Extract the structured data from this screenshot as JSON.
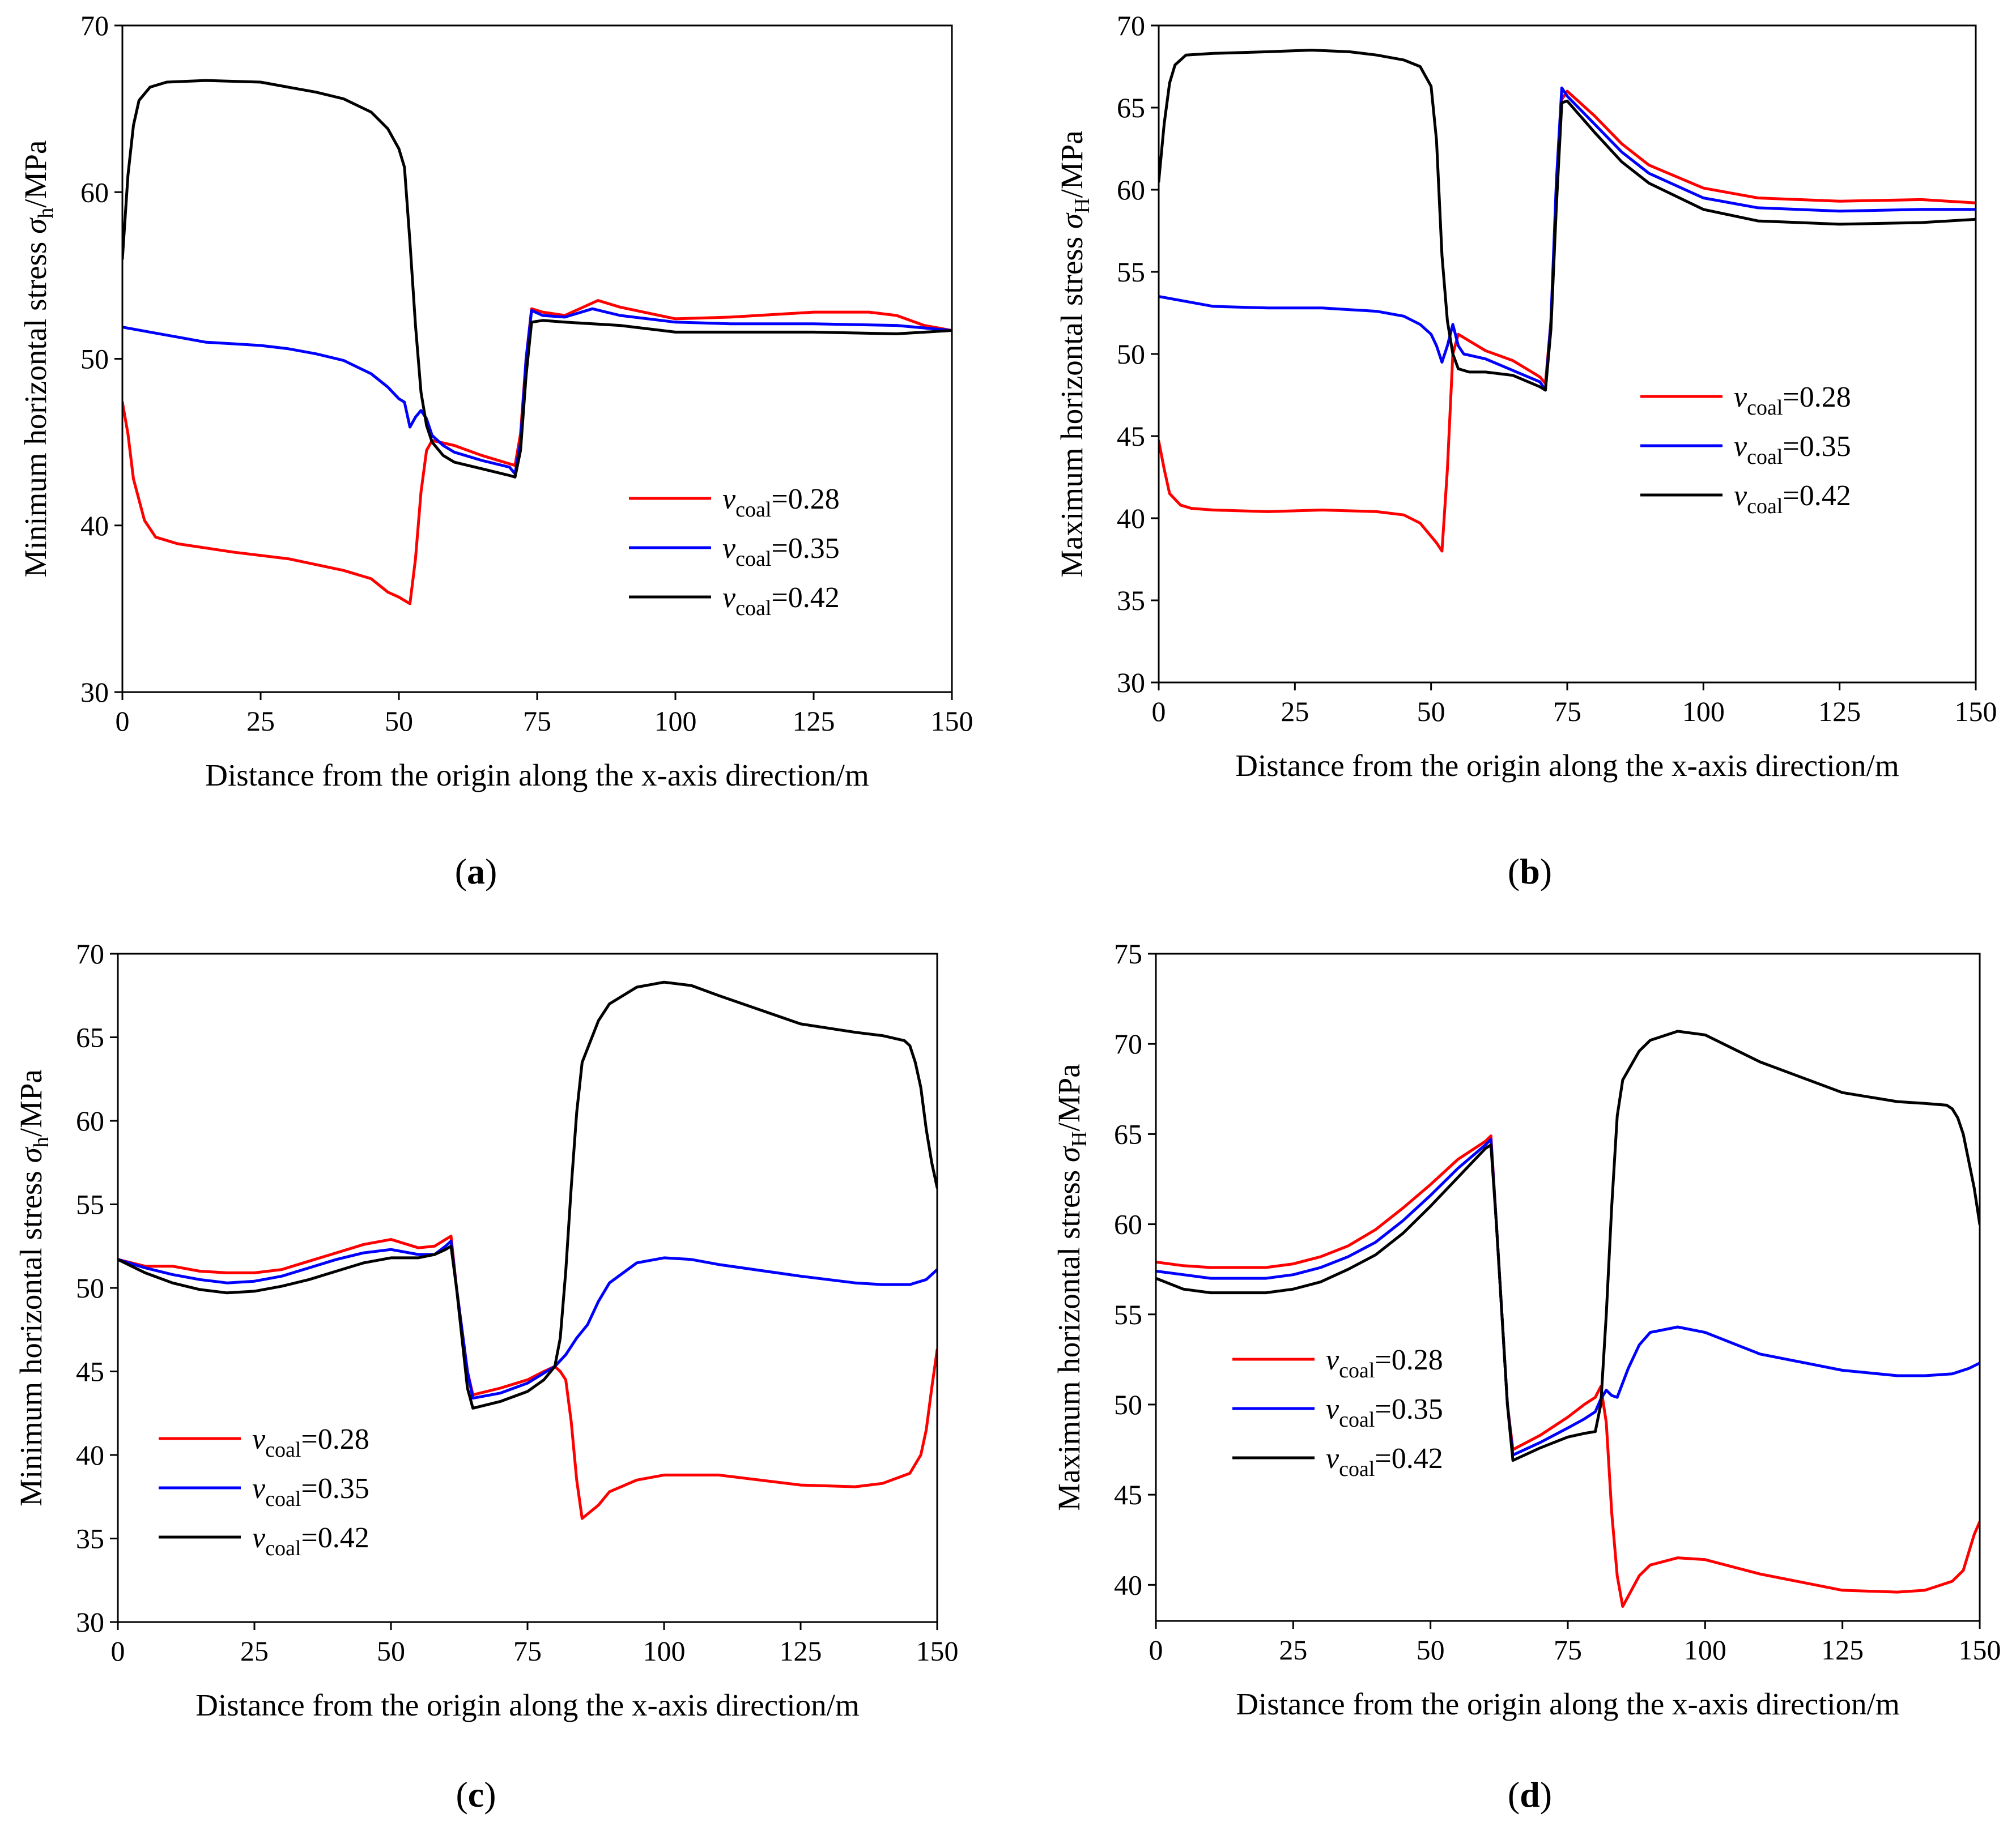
{
  "chart_data": [
    {
      "type": "line",
      "panel": "(a)",
      "ylabel": "Minimum horizontal stress σh/MPa",
      "xlabel": "Distance from the origin along the x-axis direction/m",
      "xlim": [
        0,
        150
      ],
      "ylim": [
        30,
        70
      ],
      "xticks": [
        0,
        25,
        50,
        75,
        100,
        125,
        150
      ],
      "yticks": [
        30,
        40,
        50,
        60,
        70
      ],
      "legend_position": "center-right",
      "series": [
        {
          "name": "vcoal=0.28",
          "color": "#ff0000",
          "x": [
            0,
            1,
            2,
            4,
            6,
            10,
            20,
            30,
            40,
            45,
            48,
            50,
            52,
            53,
            54,
            55,
            56,
            60,
            65,
            70,
            71,
            72,
            73,
            74,
            76,
            80,
            86,
            90,
            100,
            110,
            125,
            135,
            140,
            145,
            150
          ],
          "y": [
            47.4,
            45.5,
            42.8,
            40.3,
            39.3,
            38.9,
            38.4,
            38.0,
            37.3,
            36.8,
            36.0,
            35.7,
            35.3,
            38.0,
            42.0,
            44.5,
            45.1,
            44.8,
            44.2,
            43.7,
            43.6,
            45.5,
            50.0,
            53.0,
            52.8,
            52.6,
            53.5,
            53.1,
            52.4,
            52.5,
            52.8,
            52.8,
            52.6,
            52.0,
            51.7
          ]
        },
        {
          "name": "vcoal=0.35",
          "color": "#0000ff",
          "x": [
            0,
            5,
            10,
            15,
            20,
            25,
            30,
            35,
            40,
            45,
            48,
            50,
            51,
            52,
            53,
            54,
            55,
            56,
            58,
            60,
            65,
            70,
            71,
            72,
            73,
            74,
            76,
            80,
            85,
            90,
            100,
            110,
            125,
            140,
            150
          ],
          "y": [
            51.9,
            51.6,
            51.3,
            51.0,
            50.9,
            50.8,
            50.6,
            50.3,
            49.9,
            49.1,
            48.3,
            47.6,
            47.4,
            45.9,
            46.5,
            46.9,
            46.4,
            45.4,
            44.8,
            44.4,
            43.9,
            43.5,
            43.1,
            45.0,
            50.0,
            52.9,
            52.6,
            52.5,
            53.0,
            52.6,
            52.2,
            52.1,
            52.1,
            52.0,
            51.7
          ]
        },
        {
          "name": "vcoal=0.42",
          "color": "#000000",
          "x": [
            0,
            1,
            2,
            3,
            5,
            8,
            15,
            25,
            30,
            35,
            40,
            45,
            48,
            50,
            51,
            52,
            53,
            54,
            55,
            56,
            58,
            60,
            65,
            70,
            71,
            72,
            73,
            74,
            76,
            80,
            90,
            100,
            125,
            140,
            150
          ],
          "y": [
            56.0,
            61.0,
            64.0,
            65.5,
            66.3,
            66.6,
            66.7,
            66.6,
            66.3,
            66.0,
            65.6,
            64.8,
            63.8,
            62.6,
            61.5,
            57.0,
            52.0,
            48.0,
            46.0,
            45.0,
            44.2,
            43.8,
            43.4,
            43.0,
            42.9,
            44.5,
            49.0,
            52.2,
            52.3,
            52.2,
            52.0,
            51.6,
            51.6,
            51.5,
            51.7
          ]
        }
      ]
    },
    {
      "type": "line",
      "panel": "(b)",
      "ylabel": "Maximum horizontal stress σH/MPa",
      "xlabel": "Distance from the origin along the x-axis direction/m",
      "xlim": [
        0,
        150
      ],
      "ylim": [
        30,
        70
      ],
      "xticks": [
        0,
        25,
        50,
        75,
        100,
        125,
        150
      ],
      "yticks": [
        30,
        35,
        40,
        45,
        50,
        55,
        60,
        65,
        70
      ],
      "legend_position": "center-right",
      "series": [
        {
          "name": "vcoal=0.28",
          "color": "#ff0000",
          "x": [
            0,
            1,
            2,
            4,
            6,
            10,
            20,
            30,
            40,
            45,
            48,
            50,
            51,
            52,
            53,
            54,
            55,
            56,
            60,
            65,
            70,
            71,
            72,
            73,
            74,
            75,
            80,
            85,
            90,
            100,
            110,
            125,
            140,
            150
          ],
          "y": [
            44.7,
            43.0,
            41.5,
            40.8,
            40.6,
            40.5,
            40.4,
            40.5,
            40.4,
            40.2,
            39.7,
            38.9,
            38.5,
            38.0,
            43.0,
            50.0,
            51.2,
            51.0,
            50.2,
            49.6,
            48.6,
            48.2,
            52.0,
            60.0,
            65.5,
            66.0,
            64.5,
            62.8,
            61.5,
            60.1,
            59.5,
            59.3,
            59.4,
            59.2
          ]
        },
        {
          "name": "vcoal=0.35",
          "color": "#0000ff",
          "x": [
            0,
            5,
            10,
            20,
            30,
            35,
            40,
            45,
            48,
            50,
            51,
            52,
            53,
            54,
            55,
            56,
            60,
            65,
            70,
            71,
            72,
            73,
            74,
            75,
            80,
            85,
            90,
            100,
            110,
            125,
            140,
            150
          ],
          "y": [
            53.5,
            53.2,
            52.9,
            52.8,
            52.8,
            52.7,
            52.6,
            52.3,
            51.8,
            51.2,
            50.5,
            49.5,
            50.5,
            51.8,
            50.5,
            50.0,
            49.7,
            49.0,
            48.3,
            47.8,
            52.0,
            60.5,
            66.2,
            65.7,
            64.0,
            62.3,
            61.0,
            59.5,
            58.9,
            58.7,
            58.8,
            58.8
          ]
        },
        {
          "name": "vcoal=0.42",
          "color": "#000000",
          "x": [
            0,
            1,
            2,
            3,
            5,
            10,
            20,
            28,
            35,
            40,
            45,
            48,
            50,
            51,
            52,
            53,
            54,
            55,
            57,
            60,
            65,
            70,
            71,
            72,
            73,
            74,
            75,
            80,
            85,
            90,
            100,
            110,
            125,
            140,
            150
          ],
          "y": [
            60.5,
            64.0,
            66.5,
            67.6,
            68.2,
            68.3,
            68.4,
            68.5,
            68.4,
            68.2,
            67.9,
            67.5,
            66.3,
            63.0,
            56.0,
            52.0,
            50.0,
            49.1,
            48.9,
            48.9,
            48.7,
            48.0,
            47.8,
            51.5,
            59.0,
            65.3,
            65.4,
            63.5,
            61.7,
            60.4,
            58.8,
            58.1,
            57.9,
            58.0,
            58.2
          ]
        }
      ]
    },
    {
      "type": "line",
      "panel": "(c)",
      "ylabel": "Minimum horizontal stress σh/MPa",
      "xlabel": "Distance from the origin along the x-axis direction/m",
      "xlim": [
        0,
        150
      ],
      "ylim": [
        30,
        70
      ],
      "xticks": [
        0,
        25,
        50,
        75,
        100,
        125,
        150
      ],
      "yticks": [
        30,
        35,
        40,
        45,
        50,
        55,
        60,
        65,
        70
      ],
      "legend_position": "bottom-left",
      "series": [
        {
          "name": "vcoal=0.28",
          "color": "#ff0000",
          "x": [
            0,
            5,
            10,
            15,
            20,
            25,
            30,
            35,
            40,
            45,
            50,
            55,
            58,
            60,
            61,
            62,
            64,
            65,
            70,
            75,
            78,
            80,
            81,
            82,
            83,
            84,
            85,
            88,
            90,
            95,
            100,
            110,
            125,
            135,
            140,
            145,
            147,
            148,
            149,
            150
          ],
          "y": [
            51.7,
            51.3,
            51.3,
            51.0,
            50.9,
            50.9,
            51.1,
            51.6,
            52.1,
            52.6,
            52.9,
            52.4,
            52.5,
            52.9,
            53.1,
            50.0,
            45.0,
            43.6,
            44.0,
            44.5,
            45.0,
            45.3,
            45.0,
            44.5,
            42.0,
            38.5,
            36.2,
            37.0,
            37.8,
            38.5,
            38.8,
            38.8,
            38.2,
            38.1,
            38.3,
            38.9,
            40.0,
            41.5,
            44.0,
            46.3
          ]
        },
        {
          "name": "vcoal=0.35",
          "color": "#0000ff",
          "x": [
            0,
            5,
            10,
            15,
            20,
            25,
            30,
            35,
            40,
            45,
            50,
            55,
            58,
            60,
            61,
            62,
            64,
            65,
            70,
            75,
            78,
            80,
            82,
            84,
            86,
            88,
            90,
            95,
            100,
            105,
            110,
            125,
            135,
            140,
            145,
            148,
            150
          ],
          "y": [
            51.7,
            51.2,
            50.8,
            50.5,
            50.3,
            50.4,
            50.7,
            51.2,
            51.7,
            52.1,
            52.3,
            52.0,
            52.0,
            52.5,
            52.8,
            50.0,
            45.0,
            43.4,
            43.7,
            44.3,
            44.9,
            45.3,
            46.0,
            47.0,
            47.8,
            49.2,
            50.3,
            51.5,
            51.8,
            51.7,
            51.4,
            50.7,
            50.3,
            50.2,
            50.2,
            50.5,
            51.1
          ]
        },
        {
          "name": "vcoal=0.42",
          "color": "#000000",
          "x": [
            0,
            5,
            10,
            15,
            20,
            25,
            30,
            35,
            40,
            45,
            50,
            55,
            58,
            60,
            61,
            62,
            64,
            65,
            70,
            75,
            78,
            80,
            81,
            82,
            83,
            84,
            85,
            88,
            90,
            95,
            100,
            105,
            110,
            125,
            135,
            140,
            144,
            145,
            146,
            147,
            148,
            149,
            150
          ],
          "y": [
            51.7,
            50.9,
            50.3,
            49.9,
            49.7,
            49.8,
            50.1,
            50.5,
            51.0,
            51.5,
            51.8,
            51.8,
            52.0,
            52.3,
            52.5,
            50.0,
            44.0,
            42.8,
            43.2,
            43.8,
            44.5,
            45.3,
            47.0,
            51.0,
            56.0,
            60.5,
            63.5,
            66.0,
            67.0,
            68.0,
            68.3,
            68.1,
            67.5,
            65.8,
            65.3,
            65.1,
            64.8,
            64.5,
            63.5,
            62.0,
            59.5,
            57.5,
            56.0
          ]
        }
      ]
    },
    {
      "type": "line",
      "panel": "(d)",
      "ylabel": "Maximum horizontal stress σH/MPa",
      "xlabel": "Distance from the origin along the x-axis direction/m",
      "xlim": [
        0,
        150
      ],
      "ylim": [
        38,
        75
      ],
      "xticks": [
        0,
        25,
        50,
        75,
        100,
        125,
        150
      ],
      "yticks": [
        40,
        45,
        50,
        55,
        60,
        65,
        70,
        75
      ],
      "legend_position": "center-left",
      "series": [
        {
          "name": "vcoal=0.28",
          "color": "#ff0000",
          "x": [
            0,
            5,
            10,
            15,
            20,
            25,
            30,
            35,
            40,
            45,
            50,
            55,
            60,
            61,
            62,
            64,
            65,
            70,
            75,
            78,
            80,
            81,
            82,
            83,
            84,
            85,
            88,
            90,
            95,
            100,
            110,
            125,
            135,
            140,
            145,
            147,
            148,
            149,
            150
          ],
          "y": [
            57.9,
            57.7,
            57.6,
            57.6,
            57.6,
            57.8,
            58.2,
            58.8,
            59.7,
            60.9,
            62.2,
            63.6,
            64.6,
            64.9,
            60.0,
            50.0,
            47.5,
            48.3,
            49.3,
            50.0,
            50.4,
            51.0,
            49.0,
            44.0,
            40.5,
            38.8,
            40.5,
            41.1,
            41.5,
            41.4,
            40.6,
            39.7,
            39.6,
            39.7,
            40.2,
            40.8,
            41.8,
            42.8,
            43.5
          ]
        },
        {
          "name": "vcoal=0.35",
          "color": "#0000ff",
          "x": [
            0,
            5,
            10,
            15,
            20,
            25,
            30,
            35,
            40,
            45,
            50,
            55,
            60,
            61,
            62,
            64,
            65,
            70,
            75,
            78,
            80,
            81,
            82,
            83,
            84,
            86,
            88,
            90,
            95,
            100,
            110,
            125,
            135,
            140,
            145,
            148,
            150
          ],
          "y": [
            57.4,
            57.2,
            57.0,
            57.0,
            57.0,
            57.2,
            57.6,
            58.2,
            59.0,
            60.2,
            61.6,
            63.1,
            64.4,
            64.7,
            60.0,
            50.0,
            47.2,
            47.9,
            48.7,
            49.2,
            49.6,
            50.3,
            50.8,
            50.5,
            50.4,
            52.0,
            53.3,
            54.0,
            54.3,
            54.0,
            52.8,
            51.9,
            51.6,
            51.6,
            51.7,
            52.0,
            52.3
          ]
        },
        {
          "name": "vcoal=0.42",
          "color": "#000000",
          "x": [
            0,
            5,
            10,
            15,
            20,
            25,
            30,
            35,
            40,
            45,
            50,
            55,
            60,
            61,
            62,
            64,
            65,
            70,
            75,
            78,
            80,
            81,
            82,
            83,
            84,
            85,
            88,
            90,
            95,
            100,
            110,
            125,
            135,
            140,
            144,
            145,
            146,
            147,
            148,
            149,
            150
          ],
          "y": [
            57.0,
            56.4,
            56.2,
            56.2,
            56.2,
            56.4,
            56.8,
            57.5,
            58.3,
            59.5,
            61.0,
            62.6,
            64.2,
            64.4,
            60.0,
            50.0,
            46.9,
            47.6,
            48.2,
            48.4,
            48.5,
            50.0,
            55.0,
            61.0,
            66.0,
            68.0,
            69.6,
            70.2,
            70.7,
            70.5,
            69.0,
            67.3,
            66.8,
            66.7,
            66.6,
            66.4,
            65.9,
            65.0,
            63.5,
            62.0,
            60.0
          ]
        }
      ]
    }
  ]
}
